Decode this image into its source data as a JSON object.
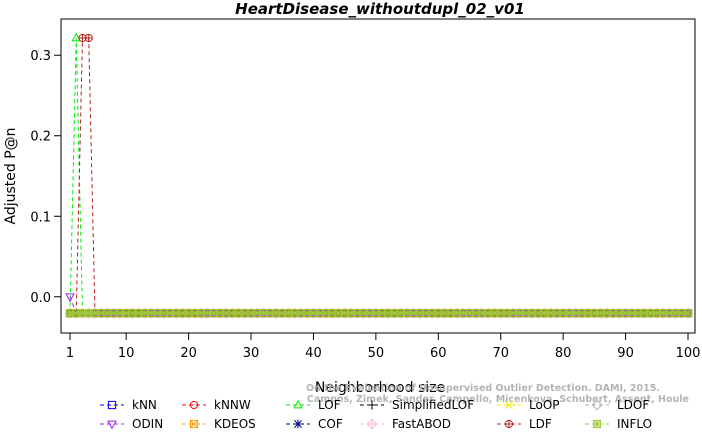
{
  "chart_data": {
    "type": "line",
    "title": "HeartDisease_withoutdupl_02_v01",
    "xlabel": "Neighborhood size",
    "ylabel": "Adjusted P@n",
    "xlim": [
      1,
      100
    ],
    "ylim": [
      -0.045,
      0.345
    ],
    "xticks": [
      1,
      10,
      20,
      30,
      40,
      50,
      60,
      70,
      80,
      90,
      100
    ],
    "yticks": [
      0.0,
      0.1,
      0.2,
      0.3
    ],
    "ytick_labels": [
      "0.0",
      "0.1",
      "0.2",
      "0.3"
    ],
    "baseline": -0.0204,
    "grid": false,
    "legend_position": "bottom",
    "series": [
      {
        "name": "kNN",
        "color": "#0000ff",
        "marker": "square",
        "peaks": []
      },
      {
        "name": "kNNW",
        "color": "#ff0000",
        "marker": "circle",
        "peaks": []
      },
      {
        "name": "LOF",
        "color": "#00ee00",
        "marker": "triangle-up",
        "peaks": [
          {
            "x": 1,
            "y": -0.0204
          },
          {
            "x": 2,
            "y": 0.3214
          },
          {
            "x": 3,
            "y": -0.0204
          }
        ]
      },
      {
        "name": "SimplifiedLOF",
        "color": "#000000",
        "marker": "plus",
        "peaks": []
      },
      {
        "name": "LoOP",
        "color": "#eeee00",
        "marker": "x",
        "peaks": []
      },
      {
        "name": "LDOF",
        "color": "#b0b0b0",
        "marker": "diamond",
        "peaks": []
      },
      {
        "name": "ODIN",
        "color": "#a020f0",
        "marker": "triangle-down",
        "peaks": [
          {
            "x": 1,
            "y": 0.0
          },
          {
            "x": 2,
            "y": -0.0204
          }
        ]
      },
      {
        "name": "KDEOS",
        "color": "#ff9900",
        "marker": "square-x",
        "peaks": []
      },
      {
        "name": "COF",
        "color": "#000080",
        "marker": "asterisk",
        "peaks": []
      },
      {
        "name": "FastABOD",
        "color": "#ffb6c1",
        "marker": "diamond-plus",
        "peaks": []
      },
      {
        "name": "LDF",
        "color": "#b22222",
        "marker": "circle-plus",
        "peaks": [
          {
            "x": 2,
            "y": -0.0204
          },
          {
            "x": 3,
            "y": 0.3214
          },
          {
            "x": 4,
            "y": 0.3214
          },
          {
            "x": 5,
            "y": -0.0204
          }
        ]
      },
      {
        "name": "INFLO",
        "color": "#9acd32",
        "marker": "square-star",
        "peaks": []
      }
    ],
    "legend_rows": [
      [
        "kNN",
        "kNNW",
        "LOF",
        "SimplifiedLOF",
        "LoOP",
        "LDOF"
      ],
      [
        "ODIN",
        "KDEOS",
        "COF",
        "FastABOD",
        "LDF",
        "INFLO"
      ]
    ]
  },
  "watermark": {
    "line1": "Campos, Zimek, Sander, Campello, Micenkova, Schubert, Assent, Houle",
    "line2": "On the Evaluation of Unsupervised Outlier Detection. DAMI, 2015."
  }
}
